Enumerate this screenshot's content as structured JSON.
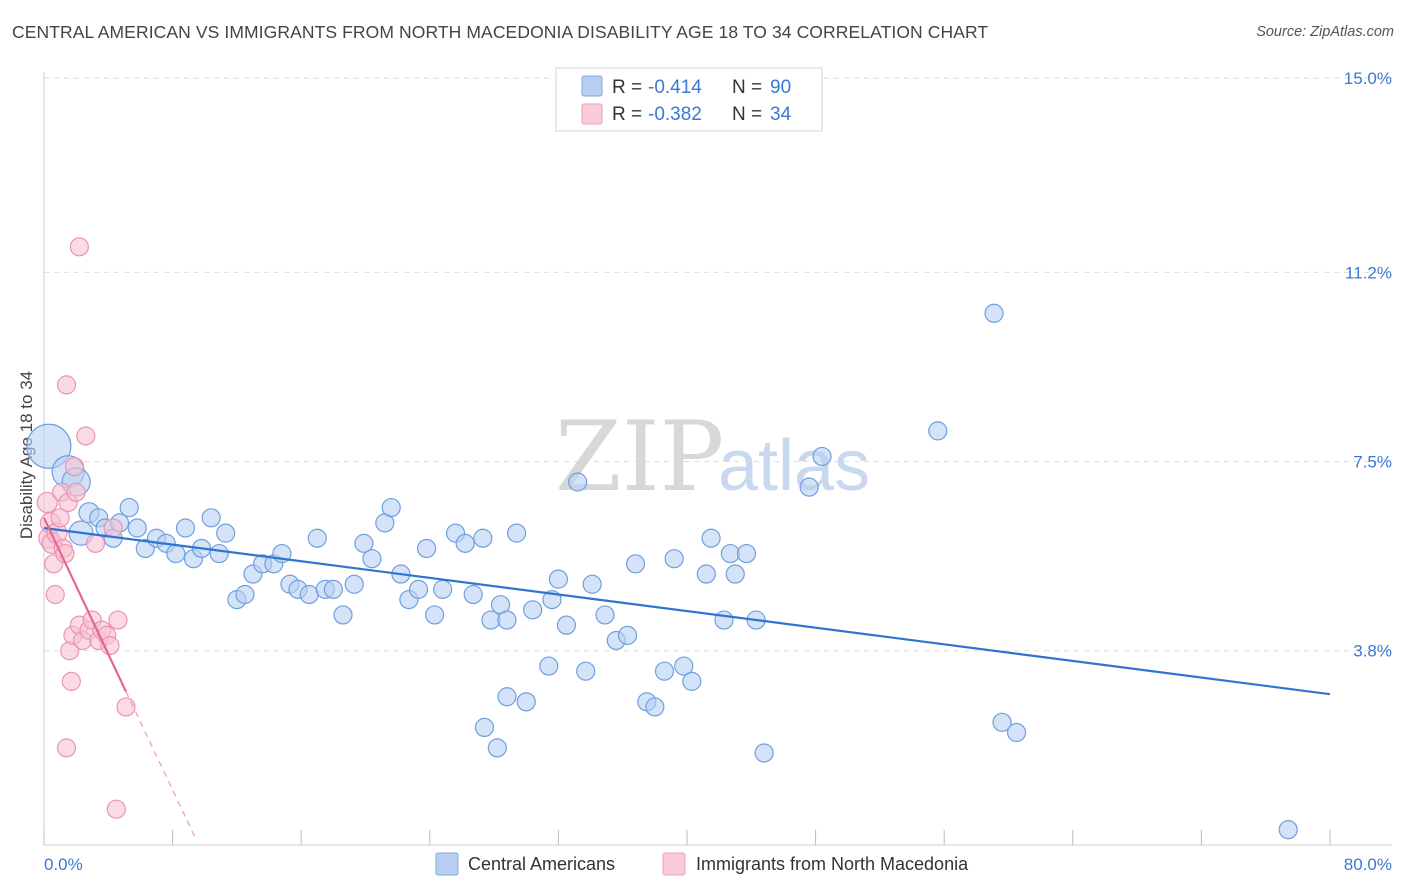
{
  "title": "CENTRAL AMERICAN VS IMMIGRANTS FROM NORTH MACEDONIA DISABILITY AGE 18 TO 34 CORRELATION CHART",
  "source": "Source: ZipAtlas.com",
  "watermark": {
    "zip": "ZIP",
    "atlas": "atlas"
  },
  "legend": {
    "r_label": "R =",
    "n_label": "N =",
    "rows": [
      {
        "r": "-0.414",
        "n": "90",
        "color": "#9cc0ee"
      },
      {
        "r": "-0.382",
        "n": "34",
        "color": "#f4a9c2"
      }
    ]
  },
  "colors": {
    "blue": "#4a8ad8",
    "blue_fill": "#b7d0f2",
    "pink": "#e5668f",
    "pink_fill": "#f6c1d3",
    "grid": "#dddddd",
    "axis_text": "#3a78d4"
  },
  "chart_data": {
    "type": "scatter",
    "title": "CENTRAL AMERICAN VS IMMIGRANTS FROM NORTH MACEDONIA DISABILITY AGE 18 TO 34 CORRELATION CHART",
    "xlabel": "",
    "ylabel": "Disability Age 18 to 34",
    "xlim": [
      0,
      80
    ],
    "ylim": [
      0,
      15.5
    ],
    "x_tick_labels": [
      "0.0%",
      "80.0%"
    ],
    "y_ticks": [
      3.8,
      7.5,
      11.2,
      15.0
    ],
    "y_tick_labels": [
      "3.8%",
      "7.5%",
      "11.2%",
      "15.0%"
    ],
    "series": [
      {
        "name": "Central Americans",
        "r": -0.414,
        "n": 90,
        "trend": {
          "x0": 0,
          "y0": 6.2,
          "x1": 80,
          "y1": 2.95
        },
        "points": [
          [
            0.3,
            7.8,
            22
          ],
          [
            1.5,
            7.3,
            16
          ],
          [
            2.0,
            7.1,
            14
          ],
          [
            2.3,
            6.1,
            12
          ],
          [
            2.8,
            6.5,
            10
          ],
          [
            3.4,
            6.4,
            9
          ],
          [
            3.8,
            6.2,
            9
          ],
          [
            4.3,
            6.0,
            9
          ],
          [
            4.7,
            6.3,
            9
          ],
          [
            5.3,
            6.6,
            9
          ],
          [
            5.8,
            6.2,
            9
          ],
          [
            6.3,
            5.8,
            9
          ],
          [
            7.0,
            6.0,
            9
          ],
          [
            7.6,
            5.9,
            9
          ],
          [
            8.2,
            5.7,
            9
          ],
          [
            8.8,
            6.2,
            9
          ],
          [
            9.3,
            5.6,
            9
          ],
          [
            9.8,
            5.8,
            9
          ],
          [
            10.4,
            6.4,
            9
          ],
          [
            10.9,
            5.7,
            9
          ],
          [
            11.3,
            6.1,
            9
          ],
          [
            12.0,
            4.8,
            9
          ],
          [
            12.5,
            4.9,
            9
          ],
          [
            13.0,
            5.3,
            9
          ],
          [
            13.6,
            5.5,
            9
          ],
          [
            14.3,
            5.5,
            9
          ],
          [
            14.8,
            5.7,
            9
          ],
          [
            15.3,
            5.1,
            9
          ],
          [
            15.8,
            5.0,
            9
          ],
          [
            16.5,
            4.9,
            9
          ],
          [
            17.0,
            6.0,
            9
          ],
          [
            17.5,
            5.0,
            9
          ],
          [
            18.0,
            5.0,
            9
          ],
          [
            18.6,
            4.5,
            9
          ],
          [
            19.3,
            5.1,
            9
          ],
          [
            19.9,
            5.9,
            9
          ],
          [
            20.4,
            5.6,
            9
          ],
          [
            21.2,
            6.3,
            9
          ],
          [
            21.6,
            6.6,
            9
          ],
          [
            22.2,
            5.3,
            9
          ],
          [
            22.7,
            4.8,
            9
          ],
          [
            23.3,
            5.0,
            9
          ],
          [
            23.8,
            5.8,
            9
          ],
          [
            24.3,
            4.5,
            9
          ],
          [
            24.8,
            5.0,
            9
          ],
          [
            25.6,
            6.1,
            9
          ],
          [
            26.2,
            5.9,
            9
          ],
          [
            26.7,
            4.9,
            9
          ],
          [
            27.3,
            6.0,
            9
          ],
          [
            27.8,
            4.4,
            9
          ],
          [
            28.4,
            4.7,
            9
          ],
          [
            28.8,
            4.4,
            9
          ],
          [
            29.4,
            6.1,
            9
          ],
          [
            30.4,
            4.6,
            9
          ],
          [
            27.4,
            2.3,
            9
          ],
          [
            28.2,
            1.9,
            9
          ],
          [
            28.8,
            2.9,
            9
          ],
          [
            30.0,
            2.8,
            9
          ],
          [
            31.4,
            3.5,
            9
          ],
          [
            31.6,
            4.8,
            9
          ],
          [
            32.0,
            5.2,
            9
          ],
          [
            32.5,
            4.3,
            9
          ],
          [
            33.2,
            7.1,
            9
          ],
          [
            33.7,
            3.4,
            9
          ],
          [
            34.1,
            5.1,
            9
          ],
          [
            34.9,
            4.5,
            9
          ],
          [
            35.6,
            4.0,
            9
          ],
          [
            36.3,
            4.1,
            9
          ],
          [
            36.8,
            5.5,
            9
          ],
          [
            37.5,
            2.8,
            9
          ],
          [
            38.0,
            2.7,
            9
          ],
          [
            38.6,
            3.4,
            9
          ],
          [
            39.2,
            5.6,
            9
          ],
          [
            39.8,
            3.5,
            9
          ],
          [
            40.3,
            3.2,
            9
          ],
          [
            41.2,
            5.3,
            9
          ],
          [
            41.5,
            6.0,
            9
          ],
          [
            42.3,
            4.4,
            9
          ],
          [
            42.7,
            5.7,
            9
          ],
          [
            43.0,
            5.3,
            9
          ],
          [
            43.7,
            5.7,
            9
          ],
          [
            44.3,
            4.4,
            9
          ],
          [
            44.8,
            1.8,
            9
          ],
          [
            47.6,
            7.0,
            9
          ],
          [
            48.4,
            7.6,
            9
          ],
          [
            55.6,
            8.1,
            9
          ],
          [
            59.1,
            10.4,
            9
          ],
          [
            59.6,
            2.4,
            9
          ],
          [
            60.5,
            2.2,
            9
          ],
          [
            77.4,
            0.3,
            9
          ]
        ]
      },
      {
        "name": "Immigrants from North Macedonia",
        "r": -0.382,
        "n": 34,
        "trend": {
          "x0": 0,
          "y0": 6.4,
          "x1": 5.1,
          "y1": 3.0,
          "x_ext": 9.4,
          "y_ext": 0.15
        },
        "points": [
          [
            0.2,
            6.7,
            10
          ],
          [
            0.3,
            6.0,
            10
          ],
          [
            0.4,
            6.3,
            10
          ],
          [
            0.5,
            5.9,
            10
          ],
          [
            0.6,
            5.5,
            9
          ],
          [
            0.7,
            4.9,
            9
          ],
          [
            0.8,
            6.1,
            10
          ],
          [
            1.0,
            6.4,
            9
          ],
          [
            1.1,
            6.9,
            9
          ],
          [
            1.2,
            5.8,
            9
          ],
          [
            1.3,
            5.7,
            9
          ],
          [
            1.4,
            9.0,
            9
          ],
          [
            1.5,
            6.7,
            9
          ],
          [
            1.6,
            3.8,
            9
          ],
          [
            1.8,
            4.1,
            9
          ],
          [
            1.9,
            7.4,
            9
          ],
          [
            2.0,
            6.9,
            9
          ],
          [
            2.2,
            4.3,
            9
          ],
          [
            2.4,
            4.0,
            9
          ],
          [
            2.6,
            8.0,
            9
          ],
          [
            2.8,
            4.2,
            9
          ],
          [
            3.0,
            4.4,
            9
          ],
          [
            3.2,
            5.9,
            9
          ],
          [
            3.4,
            4.0,
            9
          ],
          [
            3.6,
            4.2,
            9
          ],
          [
            3.9,
            4.1,
            9
          ],
          [
            4.1,
            3.9,
            9
          ],
          [
            4.3,
            6.2,
            9
          ],
          [
            4.6,
            4.4,
            9
          ],
          [
            1.4,
            1.9,
            9
          ],
          [
            1.7,
            3.2,
            9
          ],
          [
            5.1,
            2.7,
            9
          ],
          [
            2.2,
            11.7,
            9
          ],
          [
            4.5,
            0.7,
            9
          ]
        ]
      }
    ]
  }
}
